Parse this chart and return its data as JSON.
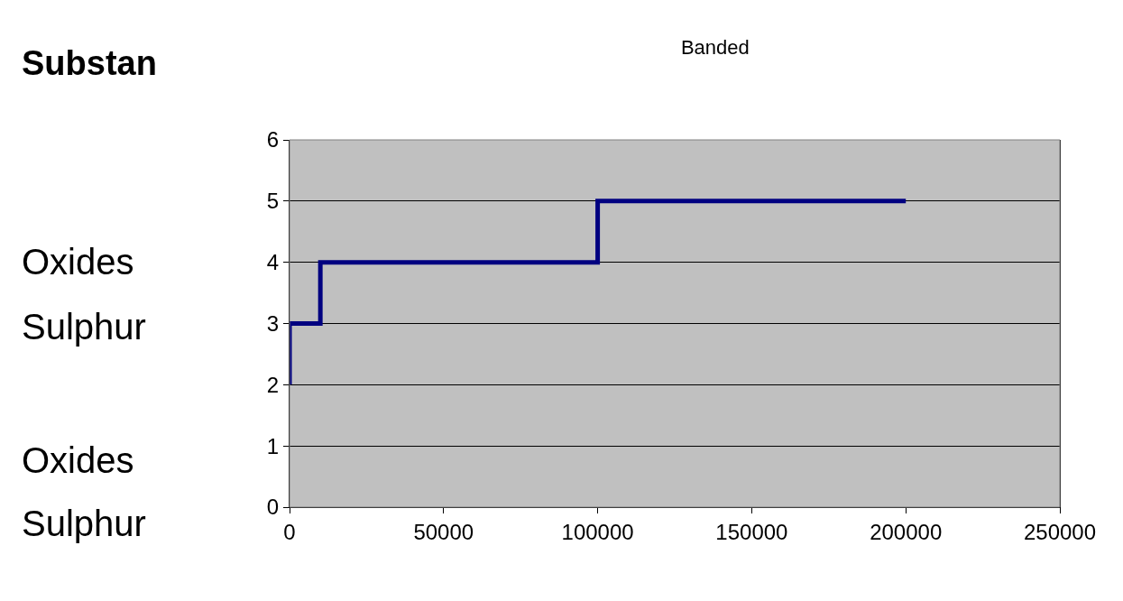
{
  "chart_data": {
    "type": "step",
    "title": "Banded",
    "x": [
      0,
      0,
      10000,
      100000,
      200000
    ],
    "series": [
      {
        "color": "#000080",
        "values": [
          2,
          3,
          4,
          5,
          5
        ]
      }
    ],
    "xlim": [
      0,
      250000
    ],
    "xticks": [
      0,
      50000,
      100000,
      150000,
      200000,
      250000
    ],
    "ylim": [
      0,
      6
    ],
    "yticks": [
      0,
      1,
      2,
      3,
      4,
      5,
      6
    ],
    "grid": "y",
    "legend": false,
    "annotations": [
      "Substan",
      "Oxides",
      "Sulphur",
      "Oxides",
      "Sulphur"
    ]
  }
}
